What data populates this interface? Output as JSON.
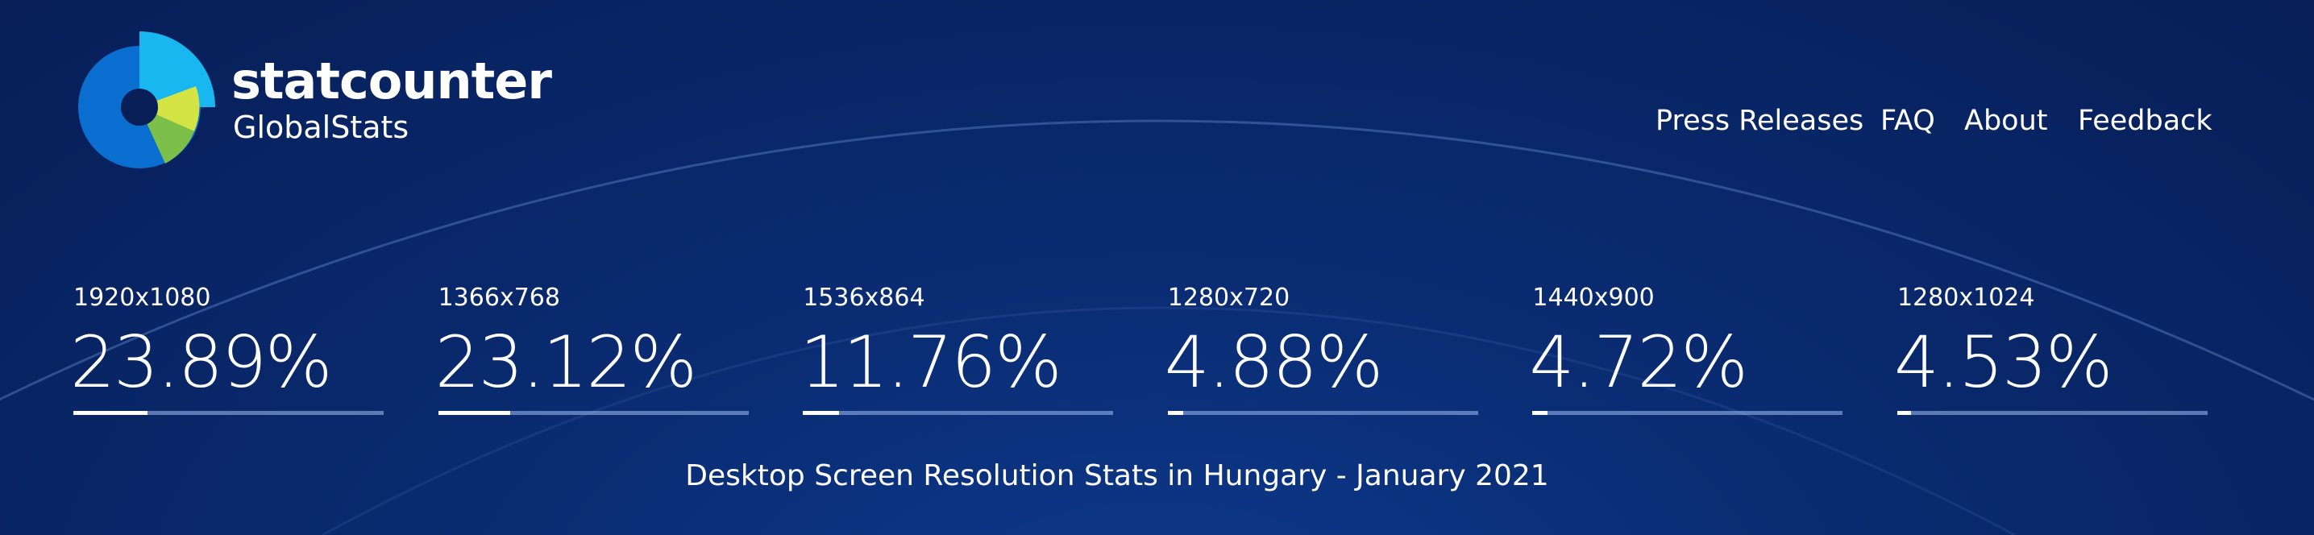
{
  "header": {
    "brand": "statcounter",
    "subbrand": "GlobalStats"
  },
  "nav": [
    "Press Releases",
    "FAQ",
    "About",
    "Feedback"
  ],
  "stats": {
    "categories": [
      "1920x1080",
      "1366x768",
      "1536x864",
      "1280x720",
      "1440x900",
      "1280x1024"
    ],
    "values": [
      23.89,
      23.12,
      11.76,
      4.88,
      4.72,
      4.53
    ],
    "value_labels": [
      "23.89%",
      "23.12%",
      "11.76%",
      "4.88%",
      "4.72%",
      "4.53%"
    ]
  },
  "caption": "Desktop Screen Resolution Stats in Hungary - January 2021"
}
